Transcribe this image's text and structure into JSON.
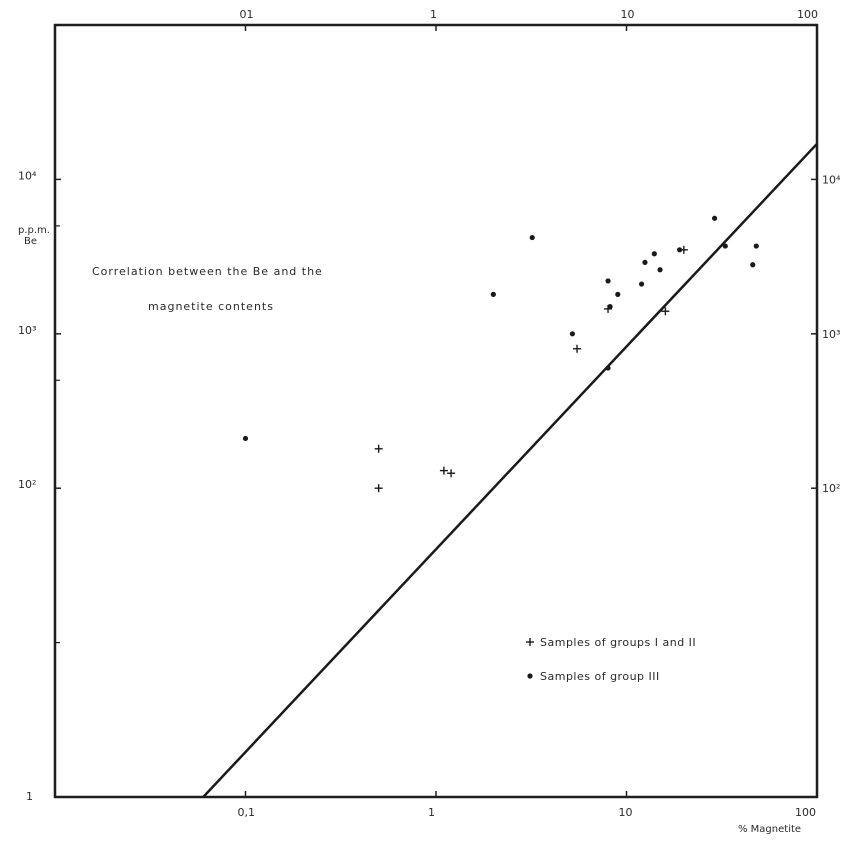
{
  "chart_data": {
    "type": "scatter",
    "title": "Correlation between the Be and the magnetite contents",
    "title_lines": [
      "Correlation between the Be and the",
      "magnetite contents"
    ],
    "xlabel": "% Magnetite",
    "ylabel_lines": [
      "p.p.m.",
      "Be"
    ],
    "x_scale": "log",
    "y_scale": "log",
    "xlim": [
      0.01,
      100
    ],
    "ylim": [
      1,
      100000
    ],
    "grid": false,
    "legend_position": "bottom-right",
    "ticks": {
      "bottom": [
        {
          "value": 0.1,
          "label": "0,1"
        },
        {
          "value": 1,
          "label": "1"
        },
        {
          "value": 10,
          "label": "10"
        },
        {
          "value": 100,
          "label": "100"
        }
      ],
      "top": [
        {
          "value": 0.1,
          "label": "01"
        },
        {
          "value": 1,
          "label": "1"
        },
        {
          "value": 10,
          "label": "10"
        },
        {
          "value": 100,
          "label": "100"
        }
      ],
      "left": [
        {
          "value": 1,
          "label": "1"
        },
        {
          "value": 100,
          "label": "10²"
        },
        {
          "value": 1000,
          "label": "10³"
        },
        {
          "value": 10000,
          "label": "10⁴"
        }
      ],
      "right": [
        {
          "value": 100,
          "label": "10²"
        },
        {
          "value": 1000,
          "label": "10³"
        },
        {
          "value": 10000,
          "label": "10⁴"
        }
      ],
      "minor_left": [
        10,
        500,
        5000
      ]
    },
    "regression_line": {
      "points": [
        [
          0.06,
          1
        ],
        [
          100,
          17000
        ]
      ]
    },
    "series": [
      {
        "name": "Samples of groups I and II",
        "marker": "plus",
        "points": [
          [
            0.5,
            180
          ],
          [
            0.5,
            100
          ],
          [
            1.1,
            130
          ],
          [
            1.2,
            125
          ],
          [
            5.5,
            800
          ],
          [
            8.0,
            1450
          ],
          [
            16.0,
            1400
          ],
          [
            20.0,
            3500
          ]
        ]
      },
      {
        "name": "Samples of group III",
        "marker": "dot",
        "points": [
          [
            0.1,
            210
          ],
          [
            2.0,
            1800
          ],
          [
            3.2,
            4200
          ],
          [
            5.2,
            1000
          ],
          [
            8.0,
            600
          ],
          [
            8.0,
            2200
          ],
          [
            8.2,
            1500
          ],
          [
            9.0,
            1800
          ],
          [
            12.0,
            2100
          ],
          [
            12.5,
            2900
          ],
          [
            14.0,
            3300
          ],
          [
            15.0,
            2600
          ],
          [
            19.0,
            3500
          ],
          [
            29.0,
            5600
          ],
          [
            33.0,
            3700
          ],
          [
            46.0,
            2800
          ],
          [
            48.0,
            3700
          ]
        ]
      }
    ]
  }
}
